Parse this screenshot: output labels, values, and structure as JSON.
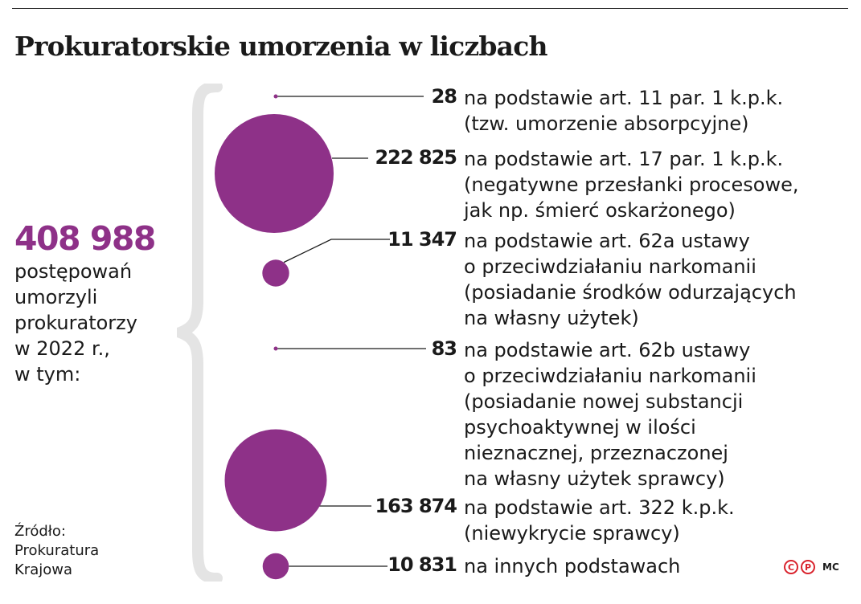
{
  "title": "Prokuratorskie umorzenia w liczbach",
  "total": {
    "value": "408 988",
    "description": "postępowań\numorzyli\nprokuratorzy\nw 2022 r.,\nw tym:"
  },
  "colors": {
    "accent": "#8e3188",
    "text": "#1a1a1a",
    "logo": "#d9232d",
    "brace": "#e4e4e4"
  },
  "chart_data": {
    "type": "bubble",
    "title": "Prokuratorskie umorzenia w liczbach",
    "categories": [
      "na podstawie art. 11 par. 1 k.p.k.\n(tzw. umorzenie absorpcyjne)",
      "na podstawie art. 17 par. 1 k.p.k.\n(negatywne przesłanki procesowe,\njak np. śmierć oskarżonego)",
      "na podstawie art. 62a ustawy\no przeciwdziałaniu narkomanii\n(posiadanie środków odurzających\nna własny użytek)",
      "na podstawie art. 62b ustawy\no przeciwdziałaniu narkomanii\n(posiadanie nowej substancji\npsychoaktywnej w ilości\nnieznacznej, przeznaczonej\nna własny użytek sprawcy)",
      "na podstawie art. 322 k.p.k.\n(niewykrycie sprawcy)",
      "na innych podstawach"
    ],
    "values": [
      28,
      222825,
      11347,
      83,
      163874,
      10831
    ],
    "value_labels": [
      "28",
      "222 825",
      "11 347",
      "83",
      "163 874",
      "10 831"
    ],
    "total": 408988
  },
  "source": "Źródło:\nProkuratura\nKrajowa",
  "logo": {
    "c": "C",
    "p": "P",
    "text": "MC"
  }
}
